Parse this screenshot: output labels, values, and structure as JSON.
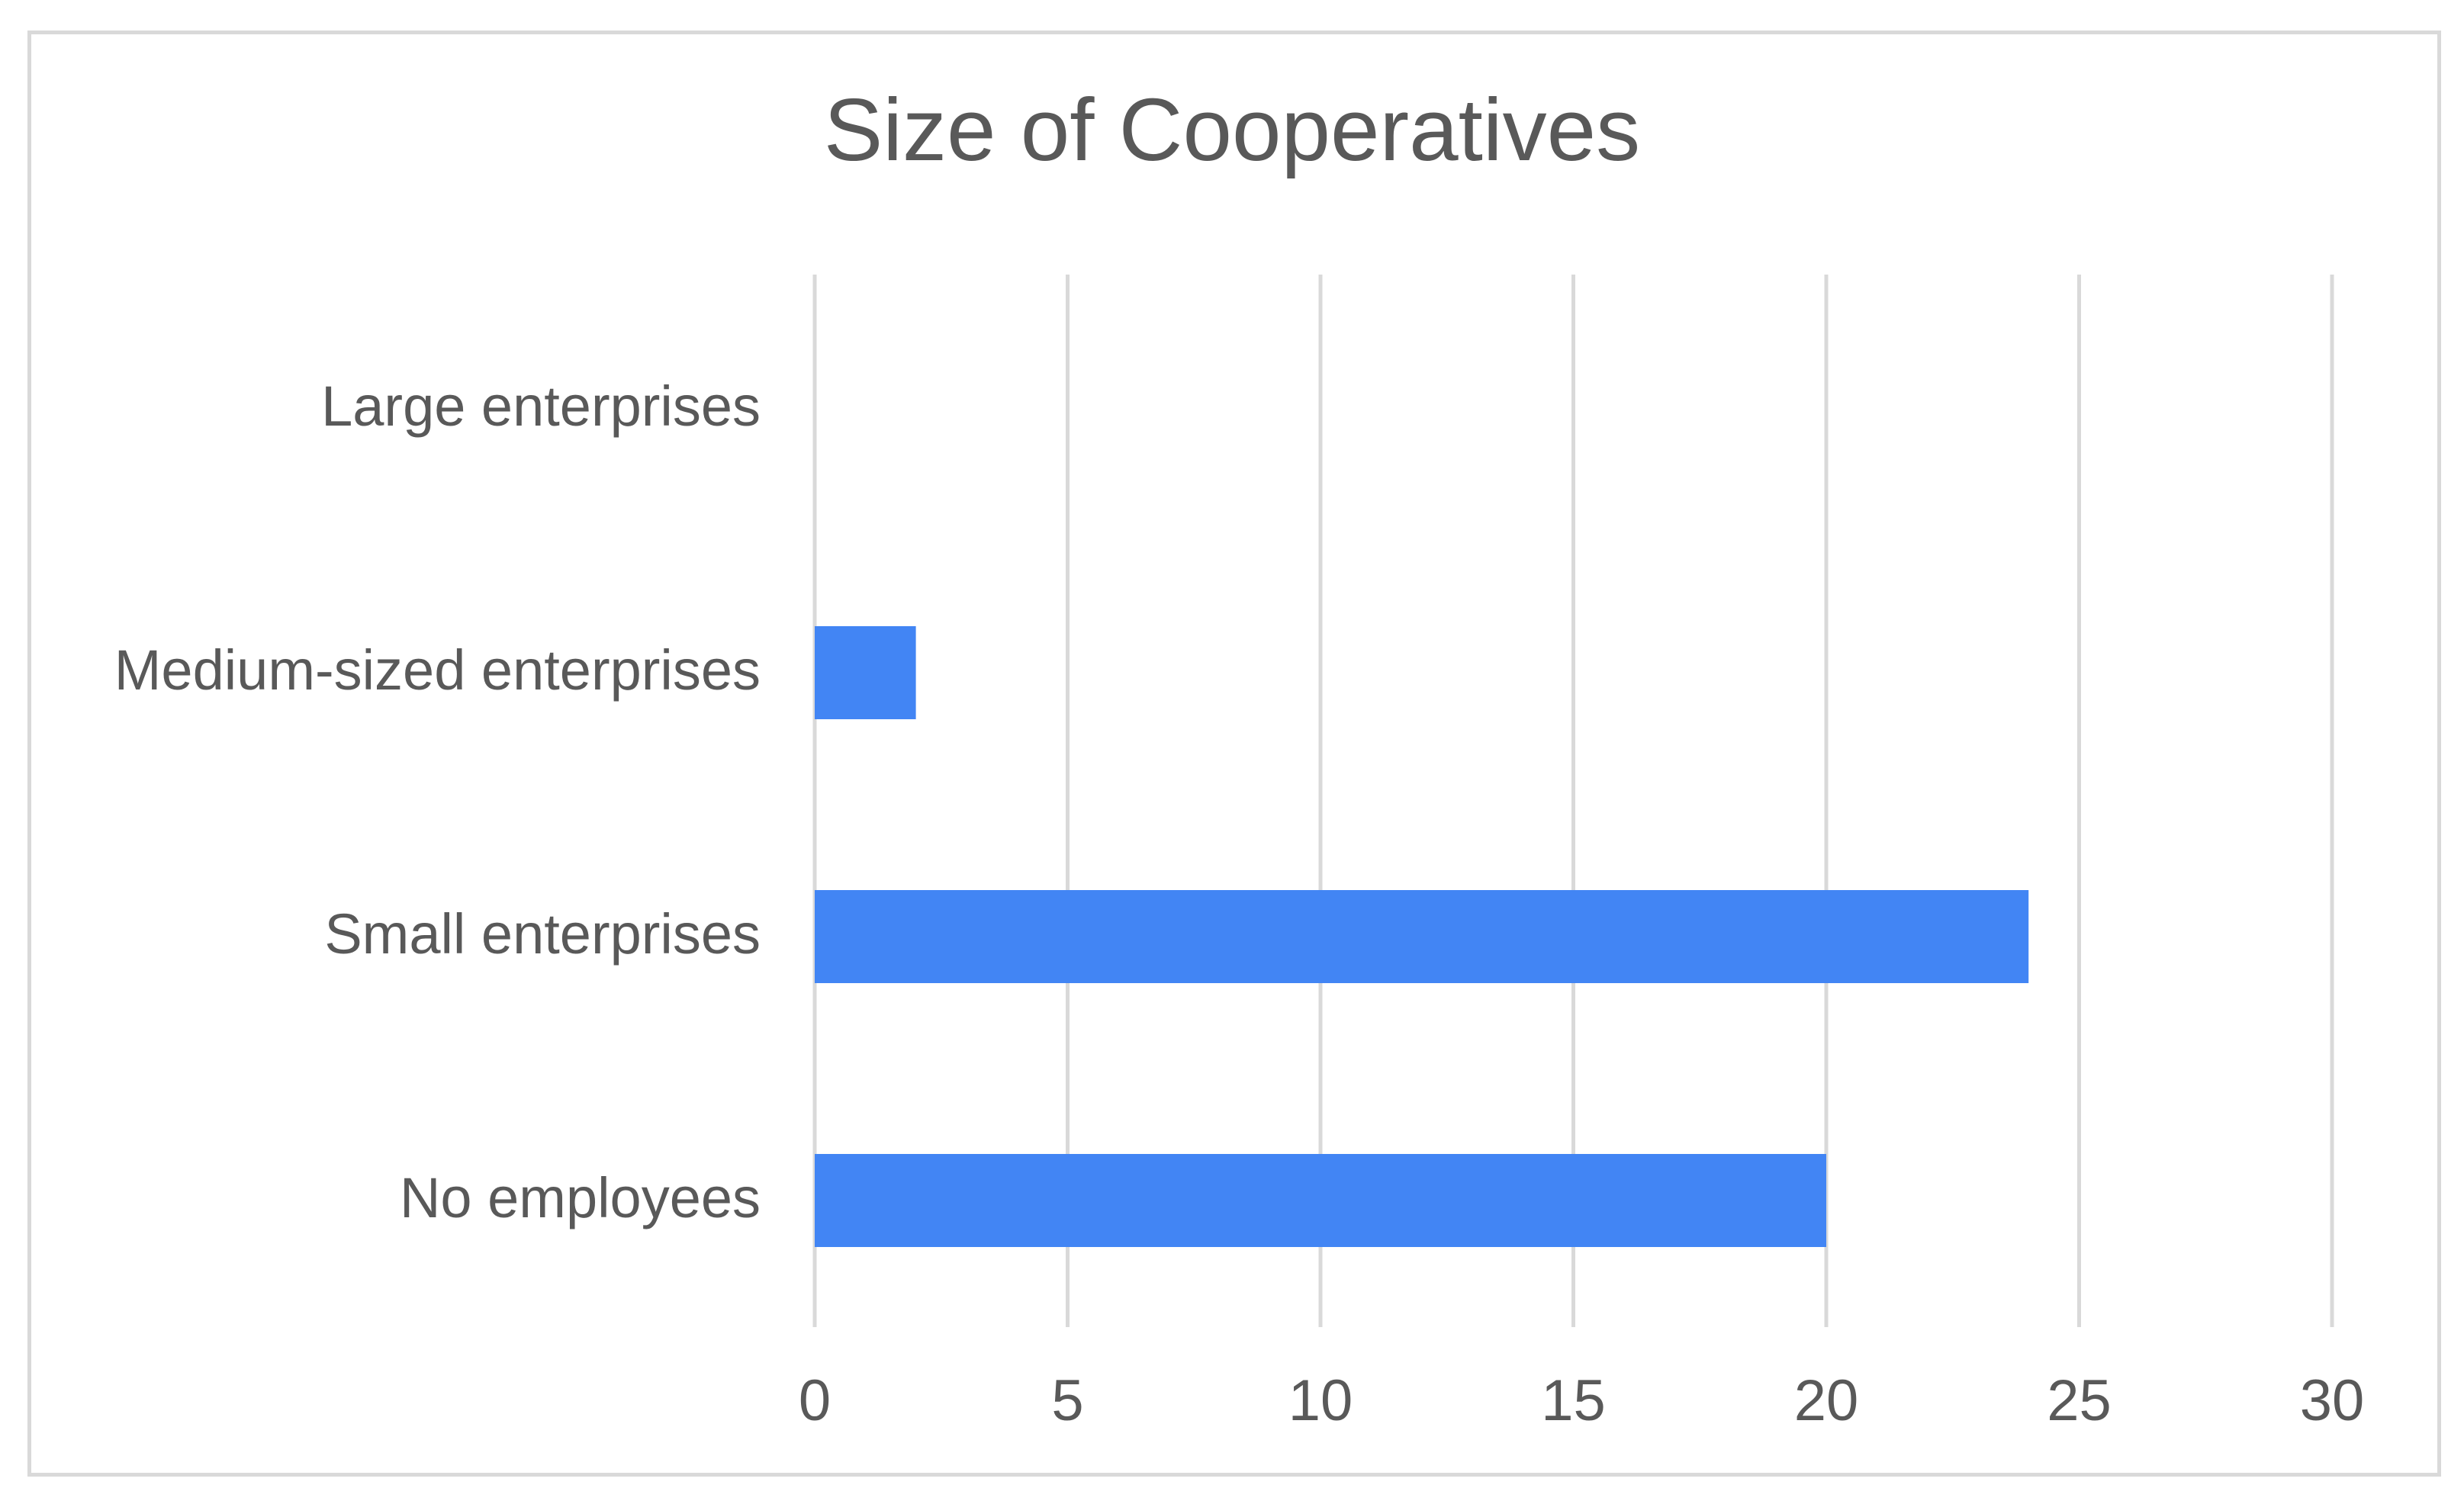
{
  "chart_data": {
    "type": "bar",
    "orientation": "horizontal",
    "title": "Size of Cooperatives",
    "categories": [
      "Large enterprises",
      "Medium-sized enterprises",
      "Small enterprises",
      "No employees"
    ],
    "values": [
      0,
      2,
      24,
      20
    ],
    "x_ticks": [
      "0",
      "5",
      "10",
      "15",
      "20",
      "25",
      "30"
    ],
    "xlim": [
      0,
      30
    ],
    "xlabel": "",
    "ylabel": "",
    "grid": "vertical",
    "legend": "none",
    "bar_color": "#4285f4",
    "grid_color": "#d9d9d9",
    "text_color": "#595959"
  }
}
